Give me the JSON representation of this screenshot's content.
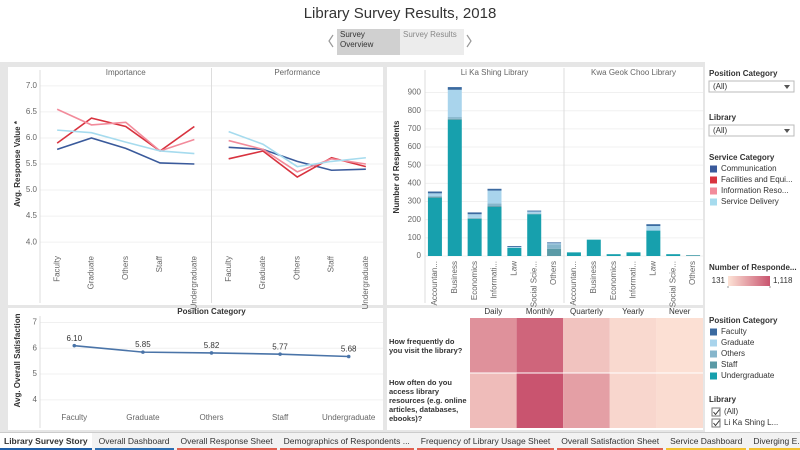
{
  "header": {
    "title": "Library Survey Results, 2018",
    "story_points": [
      "Survey Overview",
      "Survey Results"
    ]
  },
  "filters": {
    "position": {
      "title": "Position Category",
      "value": "(All)"
    },
    "library": {
      "title": "Library",
      "value": "(All)"
    },
    "library_list": {
      "title": "Library",
      "items": [
        "(All)",
        "Li Ka Shing L..."
      ]
    }
  },
  "chart_data": [
    {
      "type": "line",
      "ylabel": "Avg. Response Value *",
      "categories": [
        "Faculty",
        "Graduate",
        "Others",
        "Staff",
        "Undergraduate"
      ],
      "ylim": [
        3.85,
        7.15
      ],
      "yticks": [
        {
          "value": 4,
          "label": "4.0"
        },
        4.5,
        {
          "value": 5,
          "label": "5.0"
        },
        5.5,
        {
          "value": 6,
          "label": "6.0"
        },
        6.5,
        {
          "value": 7,
          "label": "7.0"
        }
      ],
      "legend": {
        "title": "Service Category",
        "series": [
          {
            "name": "Communication",
            "color": "#3a5a9b"
          },
          {
            "name": "Facilities and Equi...",
            "color": "#d8333f"
          },
          {
            "name": "Information Reso...",
            "color": "#f28b9b"
          },
          {
            "name": "Service Delivery",
            "color": "#a6dbee"
          }
        ]
      },
      "panels": [
        {
          "name": "Importance",
          "values": [
            [
              5.78,
              6.0,
              5.8,
              5.52,
              5.5
            ],
            [
              5.9,
              6.38,
              6.22,
              5.75,
              6.22
            ],
            [
              6.55,
              6.25,
              6.3,
              5.75,
              5.97
            ],
            [
              6.15,
              6.1,
              5.92,
              5.75,
              5.7
            ]
          ]
        },
        {
          "name": "Performance",
          "values": [
            [
              5.82,
              5.78,
              5.55,
              5.38,
              5.4
            ],
            [
              5.6,
              5.75,
              5.25,
              5.62,
              5.45
            ],
            [
              5.95,
              5.78,
              5.35,
              5.6,
              5.5
            ],
            [
              6.12,
              5.88,
              5.45,
              5.55,
              5.62
            ]
          ]
        }
      ]
    },
    {
      "type": "stacked_bar",
      "ylabel": "Number of Respondents",
      "categories": [
        "Accountan...",
        "Business",
        "Economics",
        "Informati...",
        "Law",
        "Social Scie...",
        "Others"
      ],
      "ylim": [
        0,
        980
      ],
      "yticks": [
        0,
        100,
        200,
        300,
        400,
        500,
        600,
        700,
        800,
        900
      ],
      "legend": {
        "title": "Position Category",
        "series": [
          {
            "name": "Faculty",
            "color": "#3b6aa0"
          },
          {
            "name": "Graduate",
            "color": "#a9d4ec"
          },
          {
            "name": "Others",
            "color": "#86b6cc"
          },
          {
            "name": "Staff",
            "color": "#5a9aa6"
          },
          {
            "name": "Undergraduate",
            "color": "#17a0ad"
          }
        ]
      },
      "panels": [
        {
          "name": "Li Ka Shing Library",
          "values": [
            [
              10,
              15,
              10,
              10,
              5,
              5,
              5
            ],
            [
              15,
              150,
              20,
              70,
              5,
              10,
              5
            ],
            [
              5,
              10,
              3,
              15,
              0,
              3,
              25
            ],
            [
              5,
              5,
              2,
              5,
              0,
              2,
              40
            ],
            [
              320,
              750,
              205,
              270,
              45,
              230,
              0
            ]
          ]
        },
        {
          "name": "Kwa Geok Choo Library",
          "values": [
            [
              0,
              0,
              0,
              0,
              10,
              0,
              0
            ],
            [
              0,
              0,
              0,
              0,
              25,
              0,
              0
            ],
            [
              0,
              0,
              0,
              0,
              0,
              0,
              0
            ],
            [
              0,
              0,
              0,
              0,
              0,
              0,
              3
            ],
            [
              20,
              90,
              10,
              20,
              140,
              10,
              2
            ]
          ]
        }
      ]
    },
    {
      "type": "line",
      "title": "Position Category",
      "ylabel": "Avg. Overall Satisfaction",
      "categories": [
        "Faculty",
        "Graduate",
        "Others",
        "Staff",
        "Undergraduate"
      ],
      "values": [
        6.1,
        5.85,
        5.82,
        5.77,
        5.68
      ],
      "value_labels": [
        "6.10",
        "5.85",
        "5.82",
        "5.77",
        "5.68"
      ],
      "color": "#4a74a8",
      "ylim": [
        3.8,
        7.25
      ],
      "yticks": [
        4,
        5,
        6,
        7
      ]
    },
    {
      "type": "heatmap",
      "columns": [
        "Daily",
        "Monthly",
        "Quarterly",
        "Yearly",
        "Never"
      ],
      "rows": [
        "How frequently do you visit the library?",
        "How often do you access library resources (e.g. online articles, databases, ebooks)?"
      ],
      "values": [
        [
          700,
          1000,
          350,
          200,
          150
        ],
        [
          400,
          1118,
          600,
          220,
          180
        ]
      ],
      "scale_title": "Number of Responde...",
      "scale_range": [
        131,
        1118
      ],
      "scale_ticks": [
        131,
        {
          "value": 1118,
          "label": "1,118"
        }
      ],
      "scale_colors": [
        "#fde3d6",
        "#c9546f"
      ]
    }
  ],
  "tabs": [
    "Library Survey Story",
    "Overall Dashboard",
    "Overall Response Sheet",
    "Demographics of Respondents ...",
    "Frequency of Library Usage Sheet",
    "Overall Satisfaction Sheet",
    "Service Dashboard",
    "Diverging E..."
  ]
}
